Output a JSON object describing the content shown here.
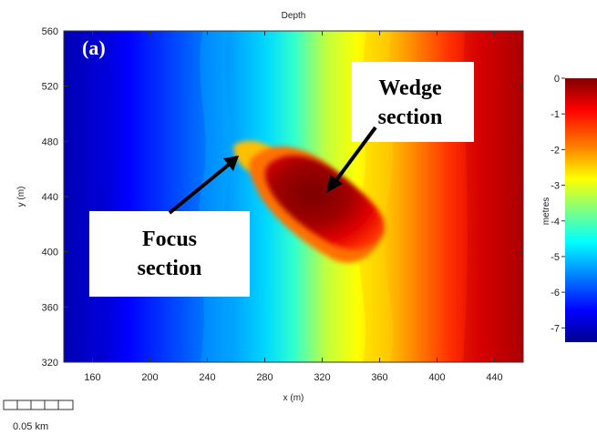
{
  "chart_data": {
    "type": "heatmap",
    "title": "Depth",
    "xlabel": "x (m)",
    "ylabel": "y (m)",
    "xlim": [
      140,
      460
    ],
    "ylim": [
      320,
      560
    ],
    "x_ticks": [
      "160",
      "200",
      "240",
      "280",
      "320",
      "360",
      "400",
      "440"
    ],
    "y_ticks": [
      "560",
      "520",
      "480",
      "440",
      "400",
      "360",
      "320"
    ],
    "colorbar": {
      "label": "metres",
      "range": [
        -7.4,
        0
      ],
      "ticks": [
        "0",
        "-1",
        "-2",
        "-3",
        "-4",
        "-5",
        "-6",
        "-7"
      ],
      "colormap": [
        "#00008f",
        "#0000ff",
        "#0080ff",
        "#00ffff",
        "#80ff80",
        "#ffff00",
        "#ff8000",
        "#ff0000",
        "#800000"
      ]
    },
    "annotations": {
      "panel": "(a)",
      "wedge_line1": "Wedge",
      "wedge_line2": "section",
      "focus_line1": "Focus",
      "focus_line2": "section"
    },
    "scale_bar": "0.05 km"
  }
}
